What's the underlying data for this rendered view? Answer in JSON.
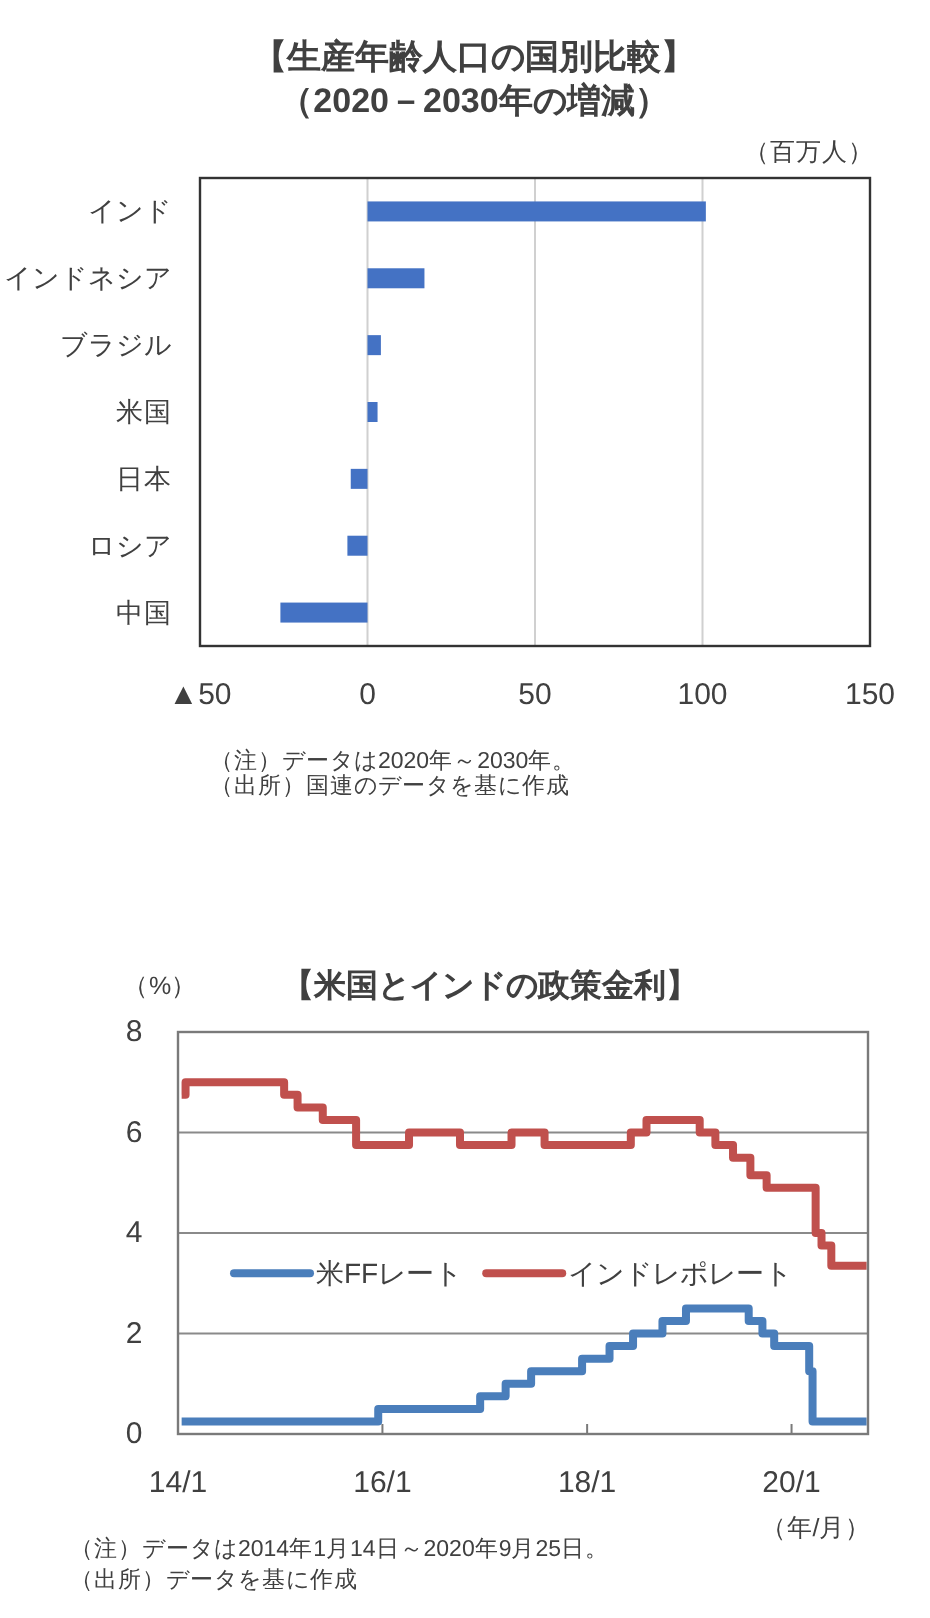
{
  "chart_data": [
    {
      "type": "bar",
      "orientation": "horizontal",
      "title": "【生産年齢人口の国別比較】",
      "subtitle": "（2020－2030年の増減）",
      "xlabel": "（百万人）",
      "categories": [
        "インド",
        "インドネシア",
        "ブラジル",
        "米国",
        "日本",
        "ロシア",
        "中国"
      ],
      "values": [
        101,
        17,
        4,
        3,
        -5,
        -6,
        -26
      ],
      "color": "#4472c4",
      "xlim": [
        -50,
        150
      ],
      "xticks": [
        {
          "value": -50,
          "label": "▲50"
        },
        0,
        50,
        100,
        150
      ],
      "grid": "x",
      "annotations": [
        "（注）データは2020年～2030年。",
        "（出所）国連のデータを基に作成"
      ]
    },
    {
      "type": "step",
      "title": "【米国とインドの政策金利】",
      "ylabel": "（%）",
      "xlabel": "（年/月）",
      "xlim": [
        "2014-01-01",
        "2020-09-30"
      ],
      "xticks": [
        {
          "value": "2014-01",
          "label": "14/1"
        },
        {
          "value": "2016-01",
          "label": "16/1"
        },
        {
          "value": "2018-01",
          "label": "18/1"
        },
        {
          "value": "2020-01",
          "label": "20/1"
        }
      ],
      "ylim": [
        0,
        8
      ],
      "yticks": [
        0,
        2,
        4,
        6,
        8
      ],
      "grid": "y",
      "legend": "left",
      "series": [
        {
          "name": "米FFレート",
          "color": "#4a7ebb",
          "x": [
            "2014-01-14",
            "2015-12-17",
            "2016-12-15",
            "2017-03-16",
            "2017-06-15",
            "2017-12-14",
            "2018-03-22",
            "2018-06-14",
            "2018-09-27",
            "2018-12-20",
            "2019-08-01",
            "2019-09-19",
            "2019-10-31",
            "2020-03-04",
            "2020-03-16",
            "2020-09-25"
          ],
          "values": [
            0.25,
            0.5,
            0.75,
            1.0,
            1.25,
            1.5,
            1.75,
            2.0,
            2.25,
            2.5,
            2.25,
            2.0,
            1.75,
            1.25,
            0.25,
            0.25
          ]
        },
        {
          "name": "インドレポレート",
          "color": "#c0504d",
          "x": [
            "2014-01-14",
            "2014-01-28",
            "2015-01-15",
            "2015-03-04",
            "2015-06-02",
            "2015-09-29",
            "2016-04-05",
            "2016-10-04",
            "2017-04-06",
            "2017-08-02",
            "2018-06-06",
            "2018-08-01",
            "2019-02-07",
            "2019-04-04",
            "2019-06-06",
            "2019-08-07",
            "2019-10-04",
            "2020-03-27",
            "2020-04-17",
            "2020-05-22",
            "2020-09-25"
          ],
          "values": [
            6.75,
            7.0,
            6.75,
            6.5,
            6.25,
            5.75,
            6.0,
            5.75,
            6.0,
            5.75,
            6.0,
            6.25,
            6.0,
            5.75,
            5.5,
            5.15,
            4.9,
            4.0,
            3.75,
            3.35,
            3.35
          ]
        }
      ],
      "annotations": [
        "（注）データは2014年1月14日～2020年9月25日。",
        "（出所）データを基に作成"
      ]
    }
  ]
}
